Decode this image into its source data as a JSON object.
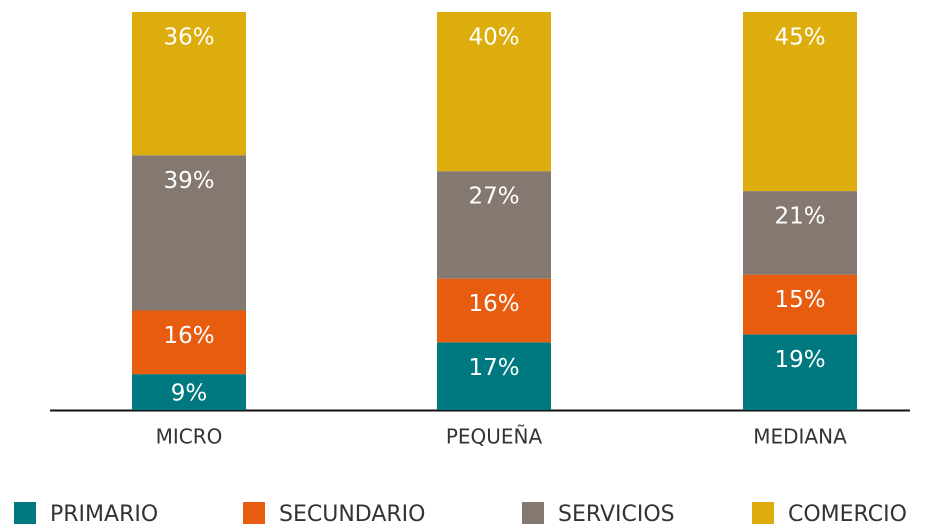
{
  "chart_data": {
    "type": "stacked_bar",
    "categories": [
      "MICRO",
      "PEQUEÑA",
      "MEDIANA"
    ],
    "ylim": [
      0,
      100
    ],
    "series": [
      {
        "name": "PRIMARIO",
        "color": "#00787f",
        "values": [
          9,
          17,
          19
        ],
        "value_labels": [
          "9%",
          "17%",
          "19%"
        ]
      },
      {
        "name": "SECUNDARIO",
        "color": "#e85c0f",
        "values": [
          16,
          16,
          15
        ],
        "value_labels": [
          "16%",
          "16%",
          "15%"
        ]
      },
      {
        "name": "SERVICIOS",
        "color": "#847870",
        "values": [
          39,
          27,
          21
        ],
        "value_labels": [
          "39%",
          "27%",
          "21%"
        ]
      },
      {
        "name": "COMERCIO",
        "color": "#dcad0d",
        "values": [
          36,
          40,
          45
        ],
        "value_labels": [
          "36%",
          "40%",
          "45%"
        ]
      }
    ]
  }
}
